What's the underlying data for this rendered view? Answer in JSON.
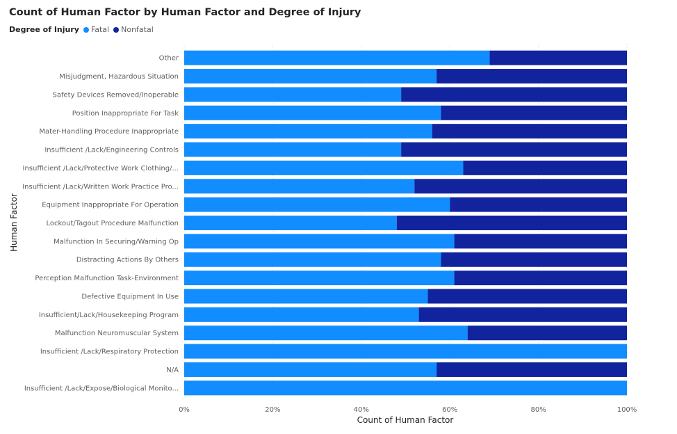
{
  "chart_data": {
    "type": "bar",
    "orientation": "horizontal",
    "stacking": "100%",
    "title": "Count of Human Factor by Human Factor and Degree of Injury",
    "xlabel": "Count of Human Factor",
    "ylabel": "Human Factor",
    "xlim": [
      0,
      100
    ],
    "x_ticks": [
      "0%",
      "20%",
      "40%",
      "60%",
      "80%",
      "100%"
    ],
    "grid": "vertical dotted",
    "legend": {
      "title": "Degree of Injury",
      "position": "top-left"
    },
    "categories": [
      "Other",
      "Misjudgment, Hazardous Situation",
      "Safety Devices Removed/Inoperable",
      "Position Inappropriate For Task",
      "Mater-Handling Procedure Inappropriate",
      "Insufficient /Lack/Engineering Controls",
      "Insufficient /Lack/Protective Work Clothing/...",
      "Insufficient /Lack/Written Work Practice Pro...",
      "Equipment Inappropriate For Operation",
      "Lockout/Tagout Procedure Malfunction",
      "Malfunction In Securing/Warning Op",
      "Distracting Actions By Others",
      "Perception Malfunction Task-Environment",
      "Defective Equipment In Use",
      "Insufficient/Lack/Housekeeping Program",
      "Malfunction Neuromuscular System",
      "Insufficient /Lack/Respiratory Protection",
      "N/A",
      "Insufficient /Lack/Expose/Biological Monito..."
    ],
    "series": [
      {
        "name": "Fatal",
        "color": "#118DFF",
        "values": [
          69,
          57,
          49,
          58,
          56,
          49,
          63,
          52,
          60,
          48,
          61,
          58,
          61,
          55,
          53,
          64,
          100,
          57,
          100
        ]
      },
      {
        "name": "Nonfatal",
        "color": "#12239E",
        "values": [
          31,
          43,
          51,
          42,
          44,
          51,
          37,
          48,
          40,
          52,
          39,
          42,
          39,
          45,
          47,
          36,
          0,
          43,
          0
        ]
      }
    ]
  }
}
